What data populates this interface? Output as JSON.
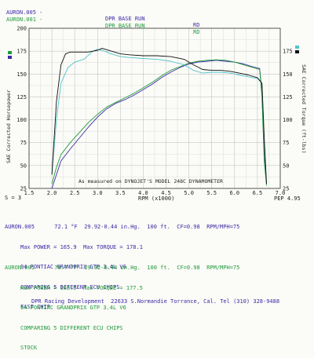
{
  "header": {
    "rows": [
      {
        "run": "AURON.005 -",
        "desc": "DPR BASE RUN",
        "code": "RD",
        "color": "#3b2aa8"
      },
      {
        "run": "AURON.001 -",
        "desc": "DPR BASE RUN",
        "code": "RD",
        "color": "#1f9a3a"
      }
    ]
  },
  "chart_data": {
    "type": "line",
    "title": "",
    "xlabel": "RPM (x1000)",
    "ylabel_left": "SAE Corrected Horsepower",
    "ylabel_right": "SAE Corrected Torque (ft-lbs)",
    "xlim": [
      1.5,
      7.0
    ],
    "ylim": [
      25,
      200
    ],
    "x_ticks": [
      "1.5",
      "2.0",
      "2.5",
      "3.0",
      "3.5",
      "4.0",
      "4.5",
      "5.0",
      "5.5",
      "6.0",
      "6.5",
      "7.0"
    ],
    "y_ticks": [
      "25",
      "50",
      "75",
      "100",
      "125",
      "150",
      "175",
      "200"
    ],
    "y_ticks_right": [
      "25",
      "50",
      "75",
      "100",
      "125",
      "150",
      "175"
    ],
    "note": "As measured on DYNOJET'S MODEL 248C DYNAMOMETER",
    "smoothing": "S = 3",
    "pep": "PEP 4.95",
    "grid": true,
    "legend_swatches_left": [
      "#1f9a3a",
      "#3b2aa8"
    ],
    "legend_swatches_right": [
      "#4fc3c8",
      "#111111"
    ],
    "series": [
      {
        "color": "#3b2aa8",
        "kind": "hp",
        "x": [
          2.0,
          2.1,
          2.2,
          2.4,
          2.6,
          2.8,
          3.0,
          3.2,
          3.4,
          3.6,
          3.8,
          4.0,
          4.2,
          4.4,
          4.6,
          4.8,
          5.0,
          5.2,
          5.4,
          5.6,
          5.8,
          6.0,
          6.2,
          6.4,
          6.55,
          6.6,
          6.65,
          6.7
        ],
        "y": [
          25,
          40,
          55,
          68,
          80,
          92,
          103,
          112,
          118,
          122,
          127,
          133,
          139,
          146,
          152,
          157,
          161,
          163,
          164,
          165,
          164,
          163,
          161,
          158,
          156,
          130,
          60,
          30
        ]
      },
      {
        "color": "#1f9a3a",
        "kind": "hp",
        "x": [
          2.0,
          2.1,
          2.2,
          2.4,
          2.6,
          2.8,
          3.0,
          3.2,
          3.4,
          3.6,
          3.8,
          4.0,
          4.2,
          4.4,
          4.6,
          4.8,
          5.0,
          5.2,
          5.4,
          5.6,
          5.8,
          6.0,
          6.2,
          6.4,
          6.55,
          6.6,
          6.65,
          6.7
        ],
        "y": [
          30,
          48,
          62,
          75,
          86,
          97,
          106,
          114,
          119,
          124,
          129,
          135,
          141,
          148,
          154,
          158,
          162,
          164,
          165,
          165.5,
          165,
          163,
          160,
          157,
          155,
          125,
          55,
          28
        ]
      },
      {
        "color": "#4fc3c8",
        "kind": "torque",
        "x": [
          2.0,
          2.1,
          2.2,
          2.35,
          2.5,
          2.7,
          2.9,
          3.0,
          3.1,
          3.3,
          3.5,
          3.7,
          4.0,
          4.3,
          4.6,
          4.9,
          5.1,
          5.3,
          5.5,
          5.7,
          5.9,
          6.1,
          6.3,
          6.5,
          6.6,
          6.65,
          6.7
        ],
        "y": [
          40,
          100,
          140,
          157,
          163,
          166,
          175,
          177,
          176,
          172,
          169,
          168,
          167,
          166,
          164,
          160,
          154,
          151,
          152,
          152,
          151,
          149,
          147,
          145,
          140,
          80,
          30
        ]
      },
      {
        "color": "#111111",
        "kind": "torque",
        "x": [
          2.0,
          2.1,
          2.2,
          2.3,
          2.4,
          2.6,
          2.8,
          3.0,
          3.1,
          3.3,
          3.5,
          3.7,
          4.0,
          4.3,
          4.6,
          4.9,
          5.1,
          5.3,
          5.5,
          5.7,
          5.9,
          6.1,
          6.3,
          6.5,
          6.6,
          6.65,
          6.7
        ],
        "y": [
          40,
          120,
          160,
          172,
          174,
          174,
          174,
          176,
          178,
          175,
          172,
          171,
          170,
          170,
          169,
          166,
          160,
          155,
          154,
          154,
          153,
          151,
          149,
          146,
          140,
          80,
          30
        ]
      }
    ]
  },
  "runs": [
    {
      "name": "AURON.005",
      "temp": "72.1 °F",
      "baro": "29.92-0.44 in.Hg.",
      "alt": "100 ft.",
      "cf": "CF=0.98",
      "rpm": "RPM/MPH=75",
      "max": "Max POWER = 165.9  Max TORQUE = 178.1",
      "car": "94 PONTIAC GRANDPRIX GTP 3.4L V6",
      "desc": "COMPARING 5 DIFERENT ECU CHIPS",
      "note": "FAST CHIP",
      "color": "#3b2aa8"
    },
    {
      "name": "AURON.001",
      "temp": "70.7 °F",
      "baro": "29.92-0.44 in.Hg.",
      "alt": "100 ft.",
      "cf": "CF=0.98",
      "rpm": "RPM/MPH=75",
      "max": "Max POWER = 165.5  Max TORQUE = 177.5",
      "car": "94 PONTIAC GRANDPRIX GTP 3.4L V6",
      "desc": "COMPARING 5 DIFFERENT ECU CHIPS",
      "note": "STOCK",
      "color": "#1f9a3a"
    }
  ],
  "footer": "DPR Racing Development  22633 S.Normandie Torrance, Cal. Tel (310) 328-9488"
}
